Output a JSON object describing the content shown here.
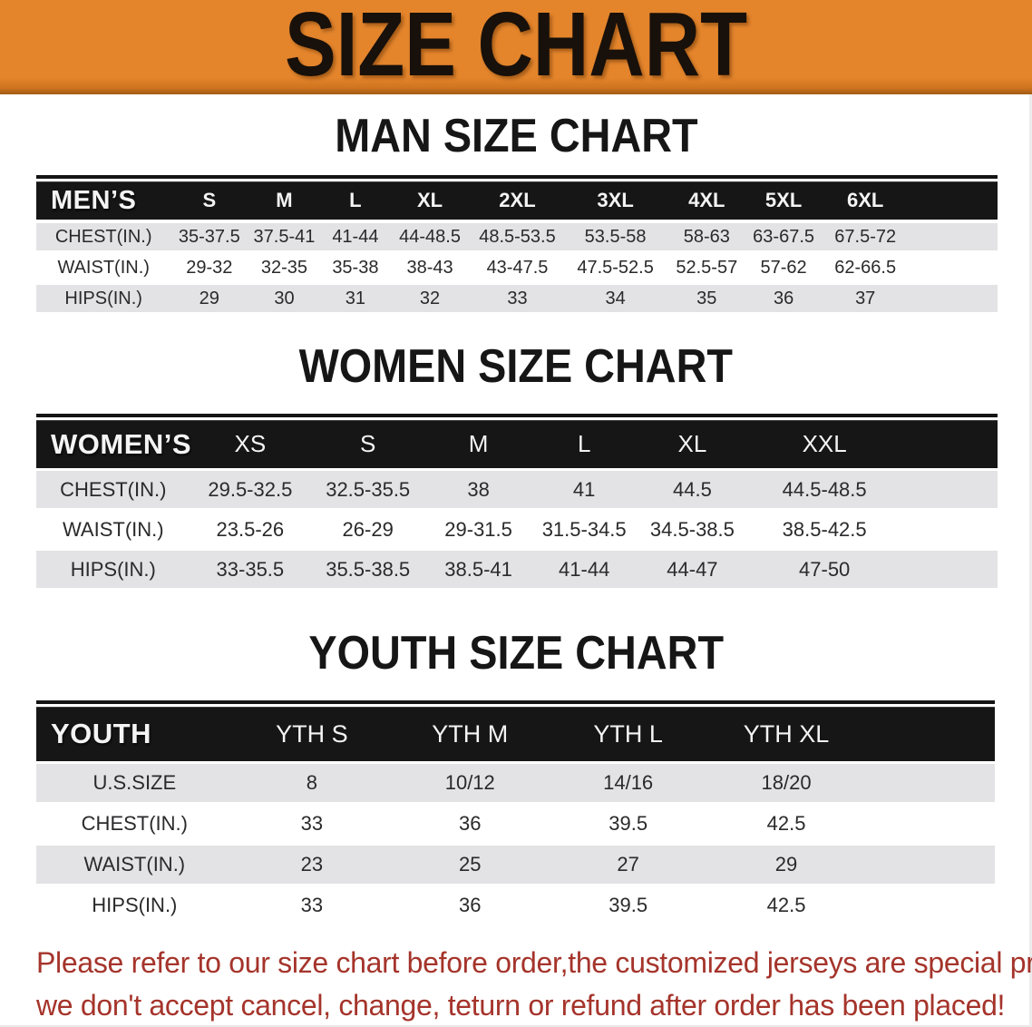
{
  "colors": {
    "banner_orange": "#e4852c",
    "header_black": "#161616",
    "row_gray": "#e3e3e5",
    "row_white": "#ffffff",
    "note_red": "#a5342b"
  },
  "banner": {
    "title": "SIZE CHART"
  },
  "men": {
    "heading": "MAN SIZE CHART",
    "table": {
      "header": [
        "MEN’S",
        "S",
        "M",
        "L",
        "XL",
        "2XL",
        "3XL",
        "4XL",
        "5XL",
        "6XL"
      ],
      "rows": [
        [
          "CHEST(IN.)",
          "35-37.5",
          "37.5-41",
          "41-44",
          "44-48.5",
          "48.5-53.5",
          "53.5-58",
          "58-63",
          "63-67.5",
          "67.5-72"
        ],
        [
          "WAIST(IN.)",
          "29-32",
          "32-35",
          "35-38",
          "38-43",
          "43-47.5",
          "47.5-52.5",
          "52.5-57",
          "57-62",
          "62-66.5"
        ],
        [
          "HIPS(IN.)",
          "29",
          "30",
          "31",
          "32",
          "33",
          "34",
          "35",
          "36",
          "37"
        ]
      ]
    }
  },
  "women": {
    "heading": "WOMEN SIZE CHART",
    "table": {
      "header": [
        "WOMEN’S",
        "XS",
        "S",
        "M",
        "L",
        "XL",
        "XXL"
      ],
      "rows": [
        [
          "CHEST(IN.)",
          "29.5-32.5",
          "32.5-35.5",
          "38",
          "41",
          "44.5",
          "44.5-48.5"
        ],
        [
          "WAIST(IN.)",
          "23.5-26",
          "26-29",
          "29-31.5",
          "31.5-34.5",
          "34.5-38.5",
          "38.5-42.5"
        ],
        [
          "HIPS(IN.)",
          "33-35.5",
          "35.5-38.5",
          "38.5-41",
          "41-44",
          "44-47",
          "47-50"
        ]
      ]
    }
  },
  "youth": {
    "heading": "YOUTH SIZE CHART",
    "table": {
      "header": [
        "YOUTH",
        "YTH S",
        "YTH M",
        "YTH L",
        "YTH XL"
      ],
      "rows": [
        [
          "U.S.SIZE",
          "8",
          "10/12",
          "14/16",
          "18/20"
        ],
        [
          "CHEST(IN.)",
          "33",
          "36",
          "39.5",
          "42.5"
        ],
        [
          "WAIST(IN.)",
          "23",
          "25",
          "27",
          "29"
        ],
        [
          "HIPS(IN.)",
          "33",
          "36",
          "39.5",
          "42.5"
        ]
      ]
    }
  },
  "note": {
    "line1": "Please refer to our size chart before order,the customized jerseys are special products,",
    "line2": "we don't accept cancel, change, teturn or refund after order has been placed!"
  }
}
